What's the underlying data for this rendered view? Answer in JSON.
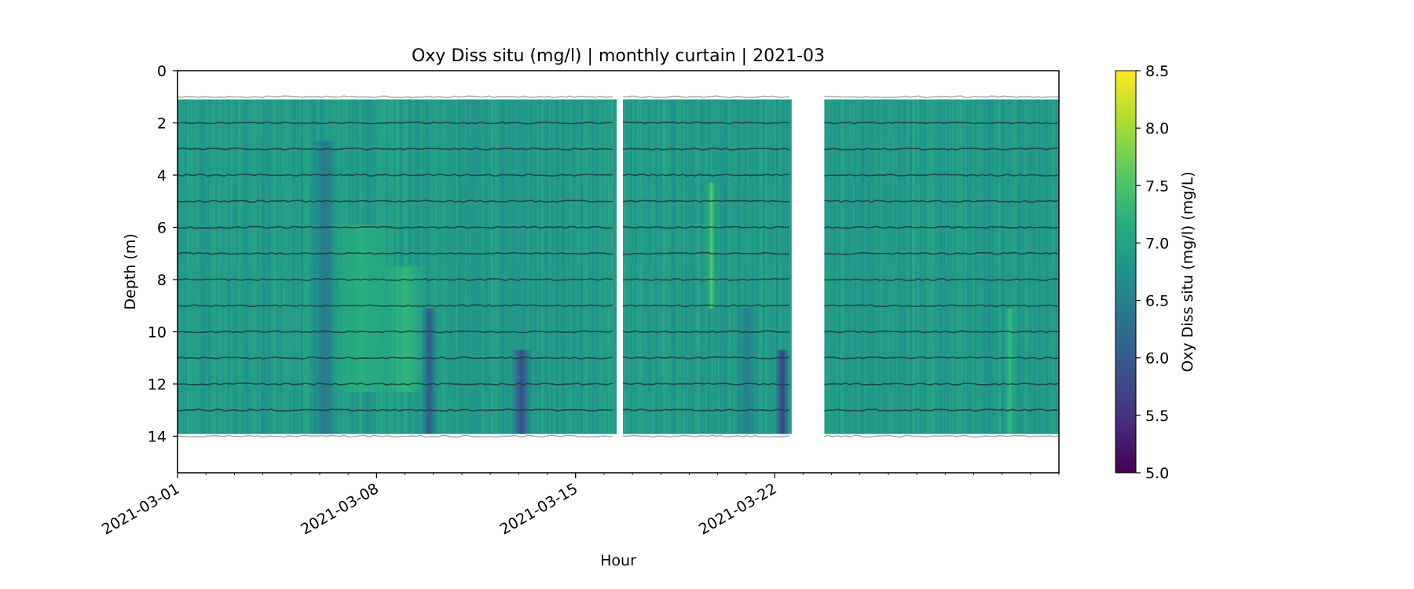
{
  "chart_data": {
    "type": "heatmap",
    "title": "Oxy Diss situ (mg/l) | monthly curtain | 2021-03",
    "xlabel": "Hour",
    "ylabel": "Depth (m)",
    "x_range": [
      "2021-03-01",
      "2021-04-01"
    ],
    "y_range": [
      0,
      15.4
    ],
    "y_inverted": true,
    "x_ticks": [
      "2021-03-01",
      "2021-03-08",
      "2021-03-15",
      "2021-03-22"
    ],
    "y_ticks": [
      0,
      2,
      4,
      6,
      8,
      10,
      12,
      14
    ],
    "colormap": "viridis",
    "colorbar": {
      "label": "Oxy Diss situ (mg/l) (mg/L)",
      "range": [
        5.0,
        8.5
      ],
      "ticks": [
        "5.0",
        "5.5",
        "6.0",
        "6.5",
        "7.0",
        "7.5",
        "8.0",
        "8.5"
      ]
    },
    "depth_coverage": [
      1.1,
      13.9
    ],
    "data_segments": [
      {
        "start": "2021-03-01",
        "end": "2021-03-16 10:00"
      },
      {
        "start": "2021-03-16 16:00",
        "end": "2021-03-22 14:00"
      },
      {
        "start": "2021-03-23 18:00",
        "end": "2021-04-01"
      }
    ],
    "sensor_depths": [
      1,
      2,
      3,
      4,
      5,
      6,
      7,
      8,
      9,
      10,
      11,
      12,
      13,
      14
    ],
    "background_value": 6.9,
    "features": [
      {
        "center": "2021-03-06 04:00",
        "width_days": 0.5,
        "value": 6.4,
        "depth_from": 2,
        "depth_to": 13.9
      },
      {
        "center": "2021-03-07 12:00",
        "width_days": 1.2,
        "value": 7.2,
        "depth_from": 6,
        "depth_to": 13.0
      },
      {
        "center": "2021-03-09 00:00",
        "width_days": 0.8,
        "value": 7.3,
        "depth_from": 7,
        "depth_to": 13.0
      },
      {
        "center": "2021-03-09 20:00",
        "width_days": 0.3,
        "value": 6.0,
        "depth_from": 9,
        "depth_to": 13.9
      },
      {
        "center": "2021-03-13 02:00",
        "width_days": 0.35,
        "value": 5.8,
        "depth_from": 10,
        "depth_to": 13.9
      },
      {
        "center": "2021-03-19 18:00",
        "width_days": 0.15,
        "value": 7.6,
        "depth_from": 4,
        "depth_to": 8.5
      },
      {
        "center": "2021-03-21 00:00",
        "width_days": 0.4,
        "value": 6.5,
        "depth_from": 9,
        "depth_to": 13.9
      },
      {
        "center": "2021-03-22 06:00",
        "width_days": 0.25,
        "value": 5.6,
        "depth_from": 10,
        "depth_to": 13.9
      },
      {
        "center": "2021-03-30 06:00",
        "width_days": 0.15,
        "value": 7.4,
        "depth_from": 9,
        "depth_to": 13.5
      }
    ]
  }
}
